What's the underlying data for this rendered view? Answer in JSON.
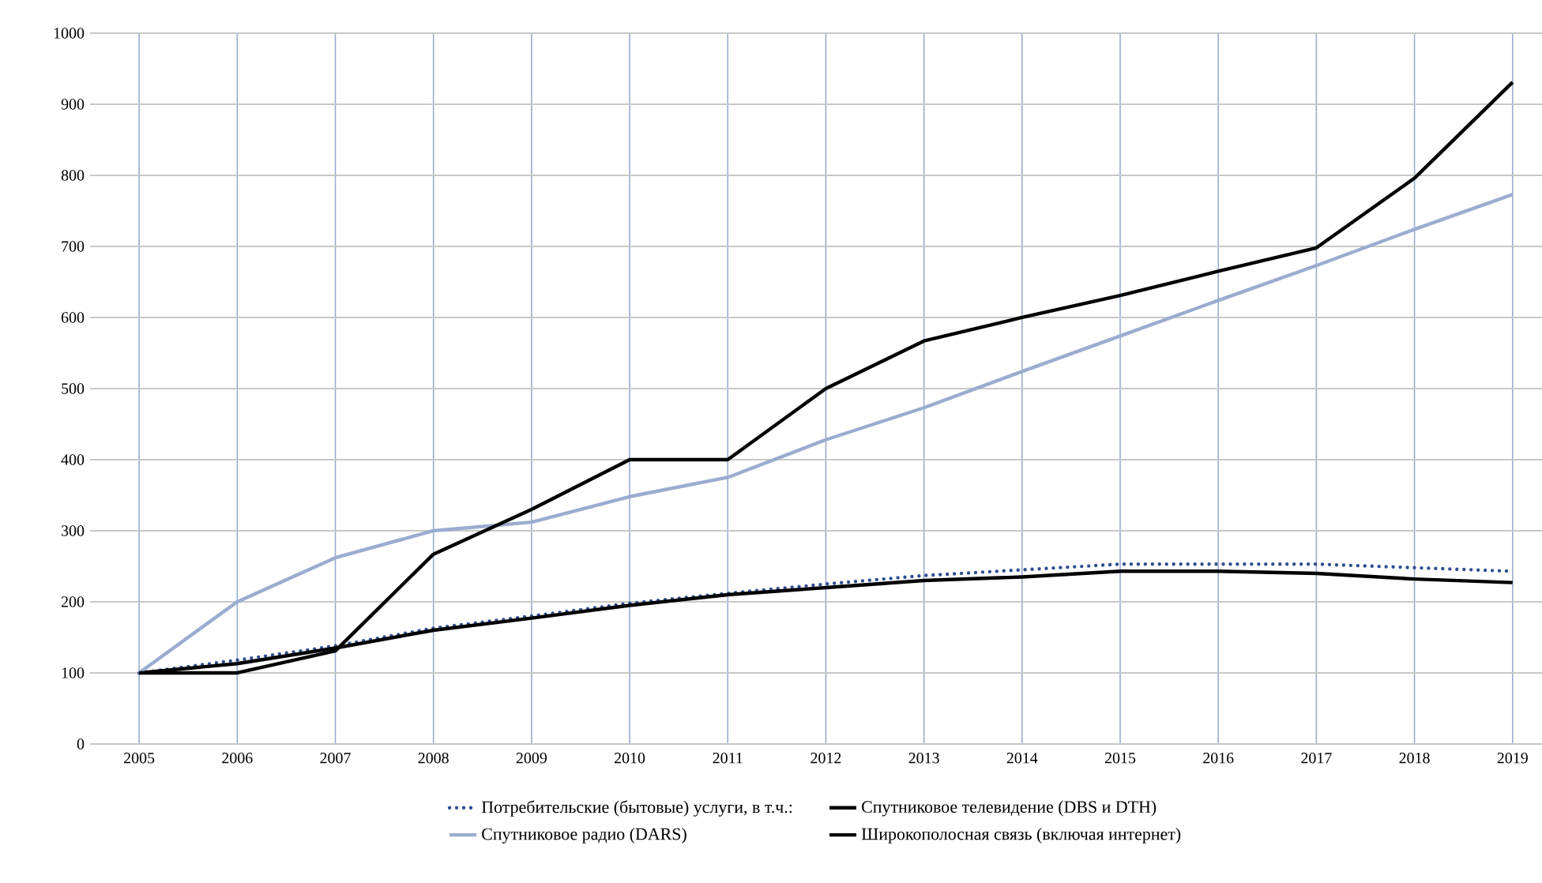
{
  "chart_data": {
    "type": "line",
    "categories": [
      "2005",
      "2006",
      "2007",
      "2008",
      "2009",
      "2010",
      "2011",
      "2012",
      "2013",
      "2014",
      "2015",
      "2016",
      "2017",
      "2018",
      "2019"
    ],
    "series": [
      {
        "name": "Потребительские (бытовые) услуги,  в т.ч.:",
        "color": "#2f4f8f",
        "line_style": "dotted",
        "values": [
          100,
          118,
          138,
          163,
          180,
          198,
          212,
          225,
          237,
          245,
          253,
          253,
          253,
          248,
          243
        ]
      },
      {
        "name": "Спутниковое телевидение (DBS и DTH)",
        "color": "#000000",
        "values": [
          100,
          113,
          135,
          160,
          177,
          195,
          210,
          220,
          230,
          235,
          243,
          243,
          240,
          232,
          227
        ]
      },
      {
        "name": "Спутниковое радио (DARS)",
        "color": "#9aaccf",
        "values": [
          100,
          200,
          262,
          300,
          312,
          348,
          375,
          428,
          473,
          524,
          574,
          624,
          673,
          724,
          773
        ]
      },
      {
        "name": "Широкополосная связь (включая интернет)",
        "color": "#000000",
        "values": [
          100,
          100,
          131,
          267,
          330,
          400,
          400,
          500,
          567,
          600,
          631,
          665,
          698,
          796,
          931
        ]
      }
    ],
    "ylim": [
      0,
      1000
    ],
    "yticks": [
      0,
      100,
      200,
      300,
      400,
      500,
      600,
      700,
      800,
      900,
      1000
    ],
    "grid": true,
    "legend": "bottom",
    "marker": "none"
  }
}
